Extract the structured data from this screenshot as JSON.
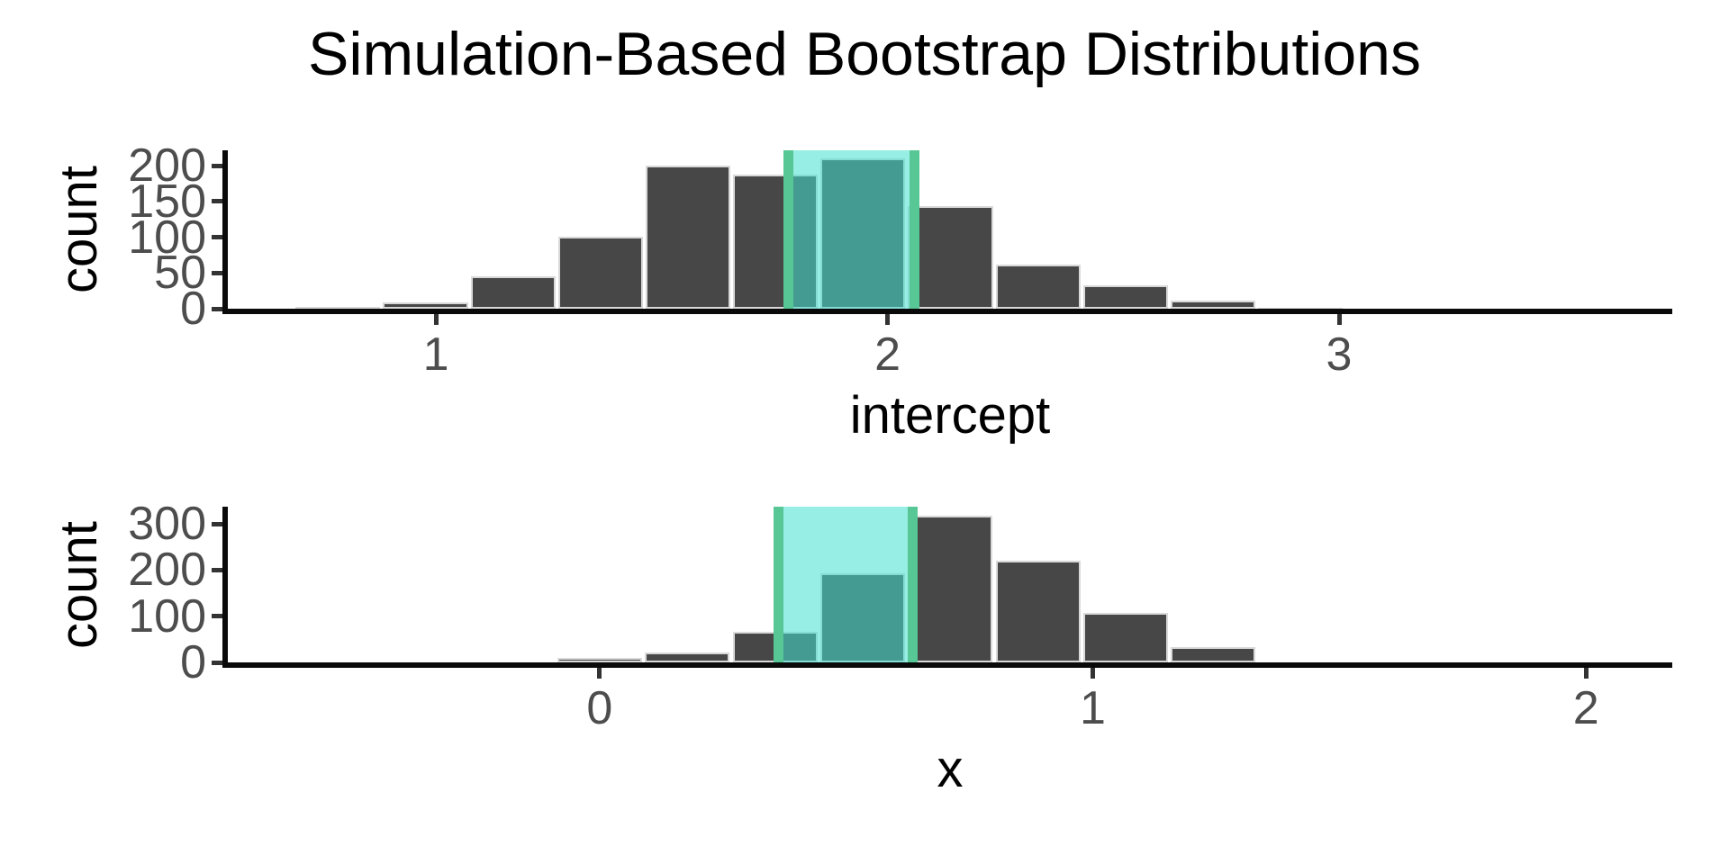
{
  "title": "Simulation-Based Bootstrap Distributions",
  "colors": {
    "bar_fill": "#474747",
    "bar_outline": "#d9d9d9",
    "axis_line": "#0a0a0a",
    "tick_mark": "#333333",
    "tick_label": "#4d4d4d",
    "ci_fill": "rgba(64,224,208,0.55)",
    "ci_border": "#57c795"
  },
  "chart_data": [
    {
      "type": "bar",
      "variant": "histogram",
      "panel": "intercept",
      "xlabel": "intercept",
      "ylabel": "count",
      "xlim": [
        0.539,
        3.738
      ],
      "ylim": [
        0,
        221.5
      ],
      "x_ticks": [
        "1",
        "2",
        "3"
      ],
      "x_tick_values": [
        1,
        2,
        3
      ],
      "y_ticks": [
        "0",
        "50",
        "100",
        "150",
        "200"
      ],
      "y_tick_values": [
        0,
        50,
        100,
        150,
        200
      ],
      "grid": "off",
      "legend": "none",
      "bin_start": 0.686,
      "bin_width": 0.1938,
      "counts": [
        2,
        9,
        45,
        101,
        200,
        187,
        210,
        144,
        62,
        33,
        12,
        1
      ],
      "ci": {
        "lower": 1.78,
        "upper": 2.06
      }
    },
    {
      "type": "bar",
      "variant": "histogram",
      "panel": "x",
      "xlabel": "x",
      "ylabel": "count",
      "xlim": [
        -0.754,
        2.175
      ],
      "ylim": [
        0,
        337
      ],
      "x_ticks": [
        "0",
        "1",
        "2"
      ],
      "x_tick_values": [
        0,
        1,
        2
      ],
      "y_ticks": [
        "0",
        "100",
        "200",
        "300"
      ],
      "y_tick_values": [
        0,
        100,
        200,
        300
      ],
      "grid": "off",
      "legend": "none",
      "bin_start": -0.0886,
      "bin_width": 0.1777,
      "counts": [
        10,
        22,
        66,
        193,
        317,
        220,
        108,
        33
      ],
      "ci": {
        "lower": 0.362,
        "upper": 0.635
      }
    }
  ]
}
